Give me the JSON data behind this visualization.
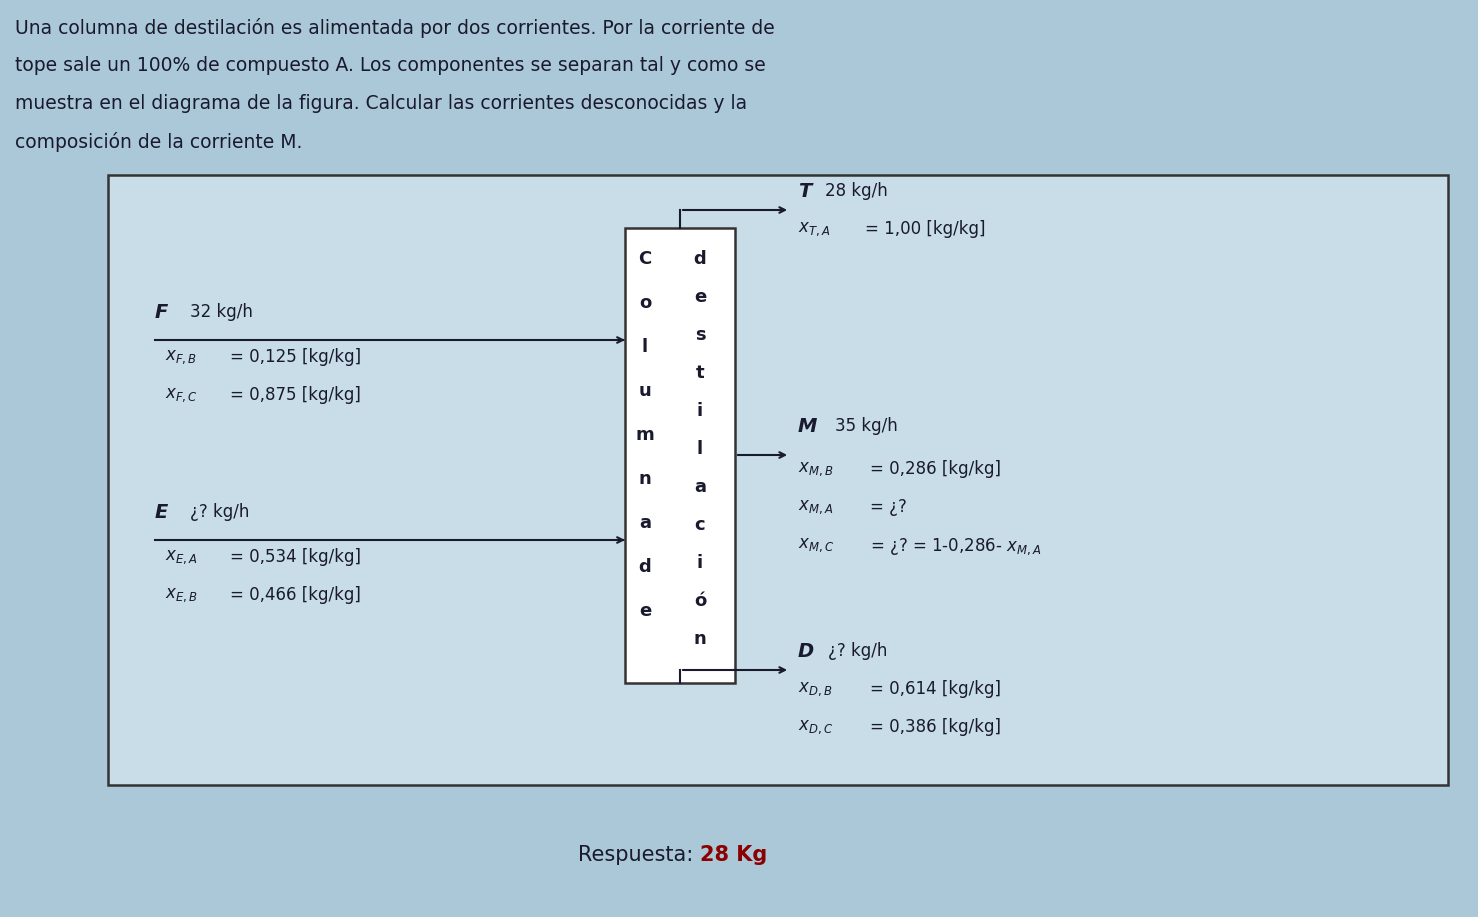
{
  "bg_color": "#abc8d8",
  "box_bg": "#c8dde8",
  "white": "#ffffff",
  "black": "#1a1a2e",
  "dark_red": "#8B0000",
  "title_lines": [
    "Una columna de destilación es alimentada por dos corrientes. Por la corriente de",
    "tope sale un 100% de compuesto A. Los componentes se separan tal y como se",
    "muestra en el diagrama de la figura. Calcular las corrientes desconocidas y la",
    "composición de la corriente M."
  ],
  "col_letters": [
    "C",
    "o",
    "l",
    "u",
    "m",
    "n",
    "a",
    "d",
    "e"
  ],
  "col_letters2": [
    "d",
    "e",
    "s",
    "t",
    "i",
    "l",
    "a",
    "c",
    "i",
    "ó",
    "n"
  ],
  "respuesta_label": "Respuesta: ",
  "respuesta_value": "28 Kg"
}
